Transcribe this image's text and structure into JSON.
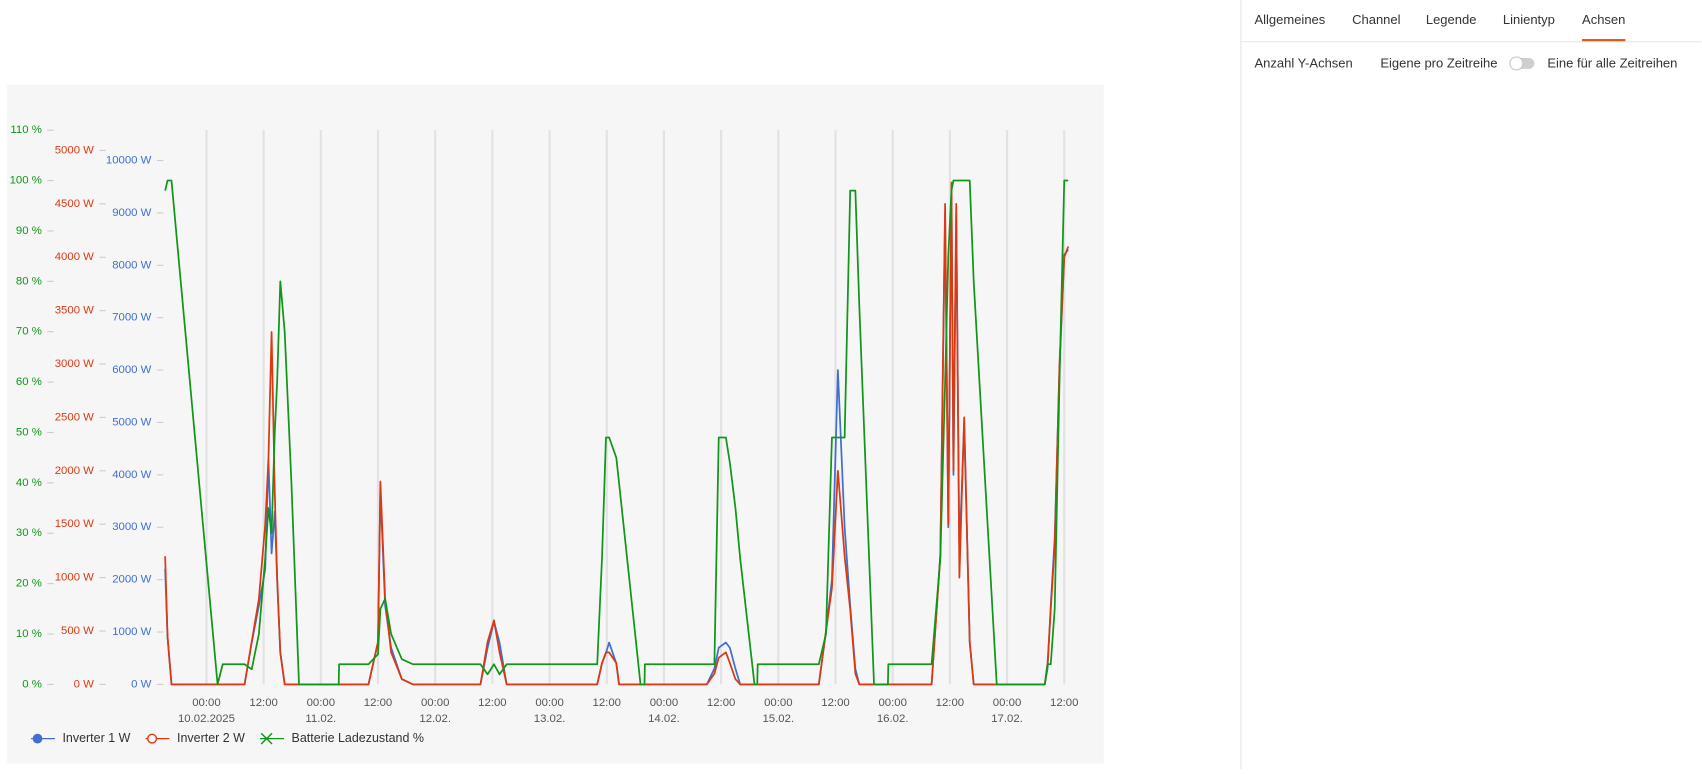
{
  "tabs": [
    "Allgemeines",
    "Channel",
    "Legende",
    "Linientyp",
    "Achsen"
  ],
  "active_tab": 4,
  "axes_setting": {
    "label": "Anzahl Y-Achsen",
    "option_left": "Eigene pro Zeitreihe",
    "option_right": "Eine für alle Zeitreihen",
    "toggle_on": false
  },
  "chart_data": {
    "type": "line",
    "grid_x": true,
    "legend": "bottom-left",
    "x": [
      "2025-02-09T15:20",
      "2025-02-09T15:50",
      "2025-02-09T16:40",
      "2025-02-10T02:20",
      "2025-02-10T03:25",
      "2025-02-10T08:00",
      "2025-02-10T09:30",
      "2025-02-10T11:00",
      "2025-02-10T12:20",
      "2025-02-10T13:00",
      "2025-02-10T13:40",
      "2025-02-10T14:20",
      "2025-02-10T14:50",
      "2025-02-10T15:30",
      "2025-02-10T16:25",
      "2025-02-10T17:50",
      "2025-02-10T19:25",
      "2025-02-11T03:45",
      "2025-02-11T03:50",
      "2025-02-11T10:00",
      "2025-02-11T12:00",
      "2025-02-11T12:30",
      "2025-02-11T13:30",
      "2025-02-11T14:45",
      "2025-02-11T17:00",
      "2025-02-11T19:20",
      "2025-02-12T09:30",
      "2025-02-12T11:00",
      "2025-02-12T12:20",
      "2025-02-12T13:30",
      "2025-02-12T15:00",
      "2025-02-13T10:00",
      "2025-02-13T11:00",
      "2025-02-13T11:50",
      "2025-02-13T12:30",
      "2025-02-13T14:00",
      "2025-02-13T14:35",
      "2025-02-13T19:05",
      "2025-02-13T19:55",
      "2025-02-13T20:00",
      "2025-02-14T09:00",
      "2025-02-14T10:35",
      "2025-02-14T11:30",
      "2025-02-14T13:00",
      "2025-02-14T13:50",
      "2025-02-14T15:00",
      "2025-02-14T16:00",
      "2025-02-14T19:00",
      "2025-02-14T19:35",
      "2025-02-14T19:40",
      "2025-02-15T08:30",
      "2025-02-15T10:00",
      "2025-02-15T11:15",
      "2025-02-15T12:30",
      "2025-02-15T13:55",
      "2025-02-15T15:05",
      "2025-02-15T16:10",
      "2025-02-15T17:00",
      "2025-02-15T20:05",
      "2025-02-15T23:00",
      "2025-02-15T23:05",
      "2025-02-16T08:10",
      "2025-02-16T10:00",
      "2025-02-16T11:00",
      "2025-02-16T11:40",
      "2025-02-16T12:20",
      "2025-02-16T12:45",
      "2025-02-16T13:20",
      "2025-02-16T14:00",
      "2025-02-16T15:00",
      "2025-02-16T16:10",
      "2025-02-16T17:00",
      "2025-02-16T21:50",
      "2025-02-17T07:55",
      "2025-02-17T08:30",
      "2025-02-17T09:10",
      "2025-02-17T10:00",
      "2025-02-17T11:00",
      "2025-02-17T12:00",
      "2025-02-17T12:50"
    ],
    "xlim": [
      "2025-02-09T14:30",
      "2025-02-17T13:00"
    ],
    "xticks": [
      {
        "value": "2025-02-10T00:00",
        "label": "00:00",
        "sublabel": "10.02.2025"
      },
      {
        "value": "2025-02-10T12:00",
        "label": "12:00"
      },
      {
        "value": "2025-02-11T00:00",
        "label": "00:00",
        "sublabel": "11.02."
      },
      {
        "value": "2025-02-11T12:00",
        "label": "12:00"
      },
      {
        "value": "2025-02-12T00:00",
        "label": "00:00",
        "sublabel": "12.02."
      },
      {
        "value": "2025-02-12T12:00",
        "label": "12:00"
      },
      {
        "value": "2025-02-13T00:00",
        "label": "00:00",
        "sublabel": "13.02."
      },
      {
        "value": "2025-02-13T12:00",
        "label": "12:00"
      },
      {
        "value": "2025-02-14T00:00",
        "label": "00:00",
        "sublabel": "14.02."
      },
      {
        "value": "2025-02-14T12:00",
        "label": "12:00"
      },
      {
        "value": "2025-02-15T00:00",
        "label": "00:00",
        "sublabel": "15.02."
      },
      {
        "value": "2025-02-15T12:00",
        "label": "12:00"
      },
      {
        "value": "2025-02-16T00:00",
        "label": "00:00",
        "sublabel": "16.02."
      },
      {
        "value": "2025-02-16T12:00",
        "label": "12:00"
      },
      {
        "value": "2025-02-17T00:00",
        "label": "00:00",
        "sublabel": "17.02."
      },
      {
        "value": "2025-02-17T12:00",
        "label": "12:00"
      }
    ],
    "ylim": [
      0,
      10580
    ],
    "yticks": [
      {
        "value": 0,
        "label": "0 W"
      },
      {
        "value": 1000,
        "label": "1000 W"
      },
      {
        "value": 2000,
        "label": "2000 W"
      },
      {
        "value": 3000,
        "label": "3000 W"
      },
      {
        "value": 4000,
        "label": "4000 W"
      },
      {
        "value": 5000,
        "label": "5000 W"
      },
      {
        "value": 6000,
        "label": "6000 W"
      },
      {
        "value": 7000,
        "label": "7000 W"
      },
      {
        "value": 8000,
        "label": "8000 W"
      },
      {
        "value": 9000,
        "label": "9000 W"
      },
      {
        "value": 10000,
        "label": "10000 W"
      }
    ],
    "y2lim": [
      0,
      5190
    ],
    "y2ticks": [
      {
        "value": 0,
        "label": "0 W"
      },
      {
        "value": 500,
        "label": "500 W"
      },
      {
        "value": 1000,
        "label": "1000 W"
      },
      {
        "value": 1500,
        "label": "1500 W"
      },
      {
        "value": 2000,
        "label": "2000 W"
      },
      {
        "value": 2500,
        "label": "2500 W"
      },
      {
        "value": 3000,
        "label": "3000 W"
      },
      {
        "value": 3500,
        "label": "3500 W"
      },
      {
        "value": 4000,
        "label": "4000 W"
      },
      {
        "value": 4500,
        "label": "4500 W"
      },
      {
        "value": 5000,
        "label": "5000 W"
      }
    ],
    "y3lim": [
      0,
      110
    ],
    "y3ticks": [
      {
        "value": 0,
        "label": "0 %"
      },
      {
        "value": 10,
        "label": "10 %"
      },
      {
        "value": 20,
        "label": "20 %"
      },
      {
        "value": 30,
        "label": "30 %"
      },
      {
        "value": 40,
        "label": "40 %"
      },
      {
        "value": 50,
        "label": "50 %"
      },
      {
        "value": 60,
        "label": "60 %"
      },
      {
        "value": 70,
        "label": "70 %"
      },
      {
        "value": 80,
        "label": "80 %"
      },
      {
        "value": 90,
        "label": "90 %"
      },
      {
        "value": 100,
        "label": "100 %"
      },
      {
        "value": 110,
        "label": "110 %"
      }
    ],
    "series": [
      {
        "name": "Inverter 1 W",
        "color": "#3f6fd1",
        "axis": "y",
        "marker": "circle-filled",
        "values": [
          2200,
          900,
          0,
          0,
          0,
          0,
          800,
          1500,
          2200,
          4300,
          2500,
          3300,
          2000,
          600,
          0,
          0,
          0,
          0,
          0,
          0,
          800,
          3700,
          1500,
          700,
          100,
          0,
          0,
          700,
          1200,
          800,
          0,
          0,
          400,
          600,
          800,
          400,
          0,
          0,
          0,
          0,
          0,
          300,
          700,
          800,
          700,
          300,
          0,
          0,
          0,
          0,
          0,
          1000,
          2000,
          6000,
          3000,
          1500,
          300,
          0,
          0,
          0,
          0,
          0,
          2500,
          9000,
          3000,
          9500,
          4000,
          9000,
          2500,
          5000,
          800,
          0,
          0,
          0,
          300,
          1500,
          2800,
          6000,
          8200,
          8300
        ]
      },
      {
        "name": "Inverter 2 W",
        "color": "#dc3912",
        "axis": "y2",
        "marker": "circle-open",
        "values": [
          1200,
          450,
          0,
          0,
          0,
          0,
          400,
          800,
          1500,
          2100,
          3300,
          1800,
          1000,
          300,
          0,
          0,
          0,
          0,
          0,
          0,
          400,
          1900,
          800,
          300,
          50,
          0,
          0,
          400,
          600,
          300,
          0,
          0,
          200,
          300,
          300,
          200,
          0,
          0,
          0,
          0,
          0,
          100,
          250,
          300,
          200,
          50,
          0,
          0,
          0,
          0,
          0,
          500,
          900,
          2000,
          1200,
          700,
          100,
          0,
          0,
          0,
          0,
          0,
          1200,
          4500,
          1500,
          4700,
          2000,
          4500,
          1000,
          2500,
          400,
          0,
          0,
          0,
          200,
          700,
          1300,
          3000,
          4000,
          4100
        ]
      },
      {
        "name": "Batterie Ladezustand %",
        "color": "#109618",
        "axis": "y3",
        "marker": "x",
        "values": [
          98,
          100,
          100,
          0,
          4,
          4,
          3,
          10,
          25,
          35,
          30,
          50,
          60,
          80,
          70,
          40,
          0,
          0,
          4,
          4,
          6,
          15,
          17,
          10,
          5,
          4,
          4,
          2,
          4,
          2,
          4,
          4,
          25,
          49,
          49,
          45,
          40,
          0,
          0,
          4,
          4,
          4,
          49,
          49,
          44,
          35,
          25,
          0,
          0,
          4,
          4,
          10,
          49,
          49,
          49,
          98,
          98,
          75,
          0,
          0,
          4,
          4,
          25,
          60,
          85,
          98,
          100,
          100,
          100,
          100,
          100,
          80,
          0,
          0,
          4,
          4,
          15,
          60,
          100,
          100
        ]
      }
    ]
  }
}
